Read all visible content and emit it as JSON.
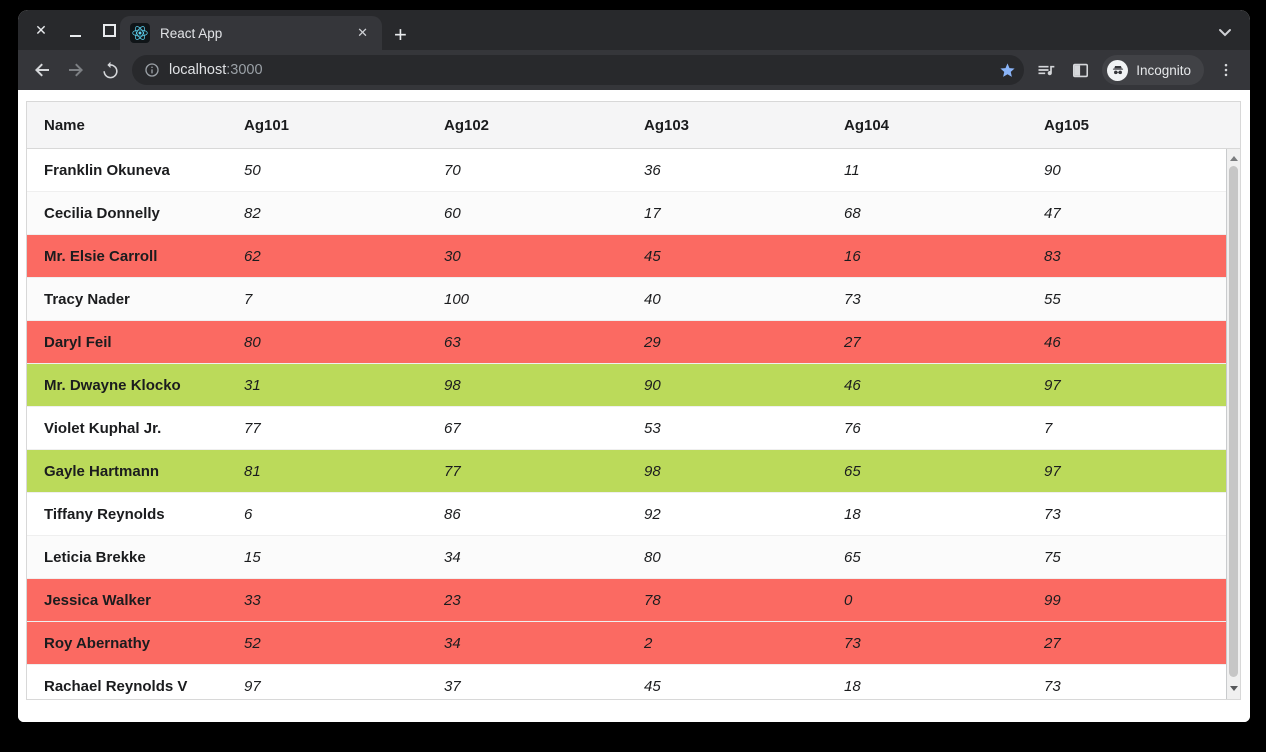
{
  "window_controls": {
    "close": "✕",
    "minimize": "minimize",
    "maximize": "maximize"
  },
  "browser": {
    "tab": {
      "title": "React App",
      "close_icon": "✕",
      "new_tab_icon": "+"
    },
    "toolbar": {
      "url": {
        "host": "localhost",
        "port": ":3000"
      },
      "incognito_label": "Incognito",
      "star_color": "#8ab4f8"
    }
  },
  "table": {
    "columns": [
      "Name",
      "Ag101",
      "Ag102",
      "Ag103",
      "Ag104",
      "Ag105"
    ],
    "rows": [
      {
        "name": "Franklin Okuneva",
        "values": [
          50,
          70,
          36,
          11,
          90
        ],
        "highlight": "none"
      },
      {
        "name": "Cecilia Donnelly",
        "values": [
          82,
          60,
          17,
          68,
          47
        ],
        "highlight": "none"
      },
      {
        "name": "Mr. Elsie Carroll",
        "values": [
          62,
          30,
          45,
          16,
          83
        ],
        "highlight": "red"
      },
      {
        "name": "Tracy Nader",
        "values": [
          7,
          100,
          40,
          73,
          55
        ],
        "highlight": "none"
      },
      {
        "name": "Daryl Feil",
        "values": [
          80,
          63,
          29,
          27,
          46
        ],
        "highlight": "red"
      },
      {
        "name": "Mr. Dwayne Klocko",
        "values": [
          31,
          98,
          90,
          46,
          97
        ],
        "highlight": "green"
      },
      {
        "name": "Violet Kuphal Jr.",
        "values": [
          77,
          67,
          53,
          76,
          7
        ],
        "highlight": "none"
      },
      {
        "name": "Gayle Hartmann",
        "values": [
          81,
          77,
          98,
          65,
          97
        ],
        "highlight": "green"
      },
      {
        "name": "Tiffany Reynolds",
        "values": [
          6,
          86,
          92,
          18,
          73
        ],
        "highlight": "none"
      },
      {
        "name": "Leticia Brekke",
        "values": [
          15,
          34,
          80,
          65,
          75
        ],
        "highlight": "none"
      },
      {
        "name": "Jessica Walker",
        "values": [
          33,
          23,
          78,
          0,
          99
        ],
        "highlight": "red"
      },
      {
        "name": "Roy Abernathy",
        "values": [
          52,
          34,
          2,
          73,
          27
        ],
        "highlight": "red"
      },
      {
        "name": "Rachael Reynolds V",
        "values": [
          97,
          37,
          45,
          18,
          73
        ],
        "highlight": "none"
      },
      {
        "name": "",
        "values": [
          "",
          "",
          "",
          "",
          ""
        ],
        "highlight": "red"
      }
    ],
    "colors": {
      "red_highlight": "#fb6a62",
      "green_highlight": "#bbda5a"
    }
  }
}
